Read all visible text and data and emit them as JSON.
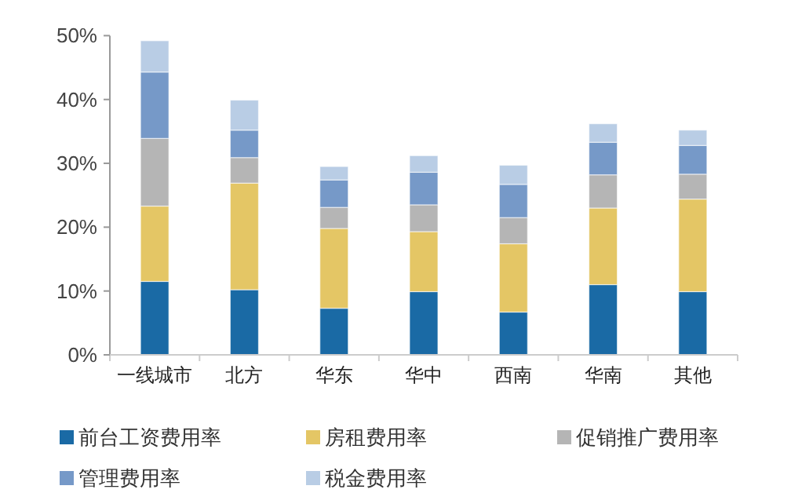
{
  "chart_data": {
    "type": "bar",
    "stacked": true,
    "categories": [
      "一线城市",
      "北方",
      "华东",
      "华中",
      "西南",
      "华南",
      "其他"
    ],
    "series": [
      {
        "name": "前台工资费用率",
        "color": "#1a6aa5",
        "values": [
          11.5,
          10.2,
          7.3,
          9.9,
          6.7,
          11.0,
          9.9
        ]
      },
      {
        "name": "房租费用率",
        "color": "#e4c665",
        "values": [
          11.8,
          16.7,
          12.5,
          9.4,
          10.7,
          12.0,
          14.5
        ]
      },
      {
        "name": "促销推广费用率",
        "color": "#b5b5b5",
        "values": [
          10.6,
          4.0,
          3.3,
          4.2,
          4.1,
          5.2,
          3.9
        ]
      },
      {
        "name": "管理费用率",
        "color": "#7699c8",
        "values": [
          10.4,
          4.3,
          4.3,
          5.1,
          5.2,
          5.1,
          4.5
        ]
      },
      {
        "name": "税金费用率",
        "color": "#b9cde5",
        "values": [
          4.9,
          4.7,
          2.1,
          2.6,
          3.0,
          2.9,
          2.4
        ]
      }
    ],
    "ylim": [
      0,
      50
    ],
    "yticks": [
      {
        "value": 0,
        "label": "0%"
      },
      {
        "value": 10,
        "label": "10%"
      },
      {
        "value": 20,
        "label": "20%"
      },
      {
        "value": 30,
        "label": "30%"
      },
      {
        "value": 40,
        "label": "40%"
      },
      {
        "value": 50,
        "label": "50%"
      }
    ],
    "grid": false,
    "legend": "bottom"
  }
}
